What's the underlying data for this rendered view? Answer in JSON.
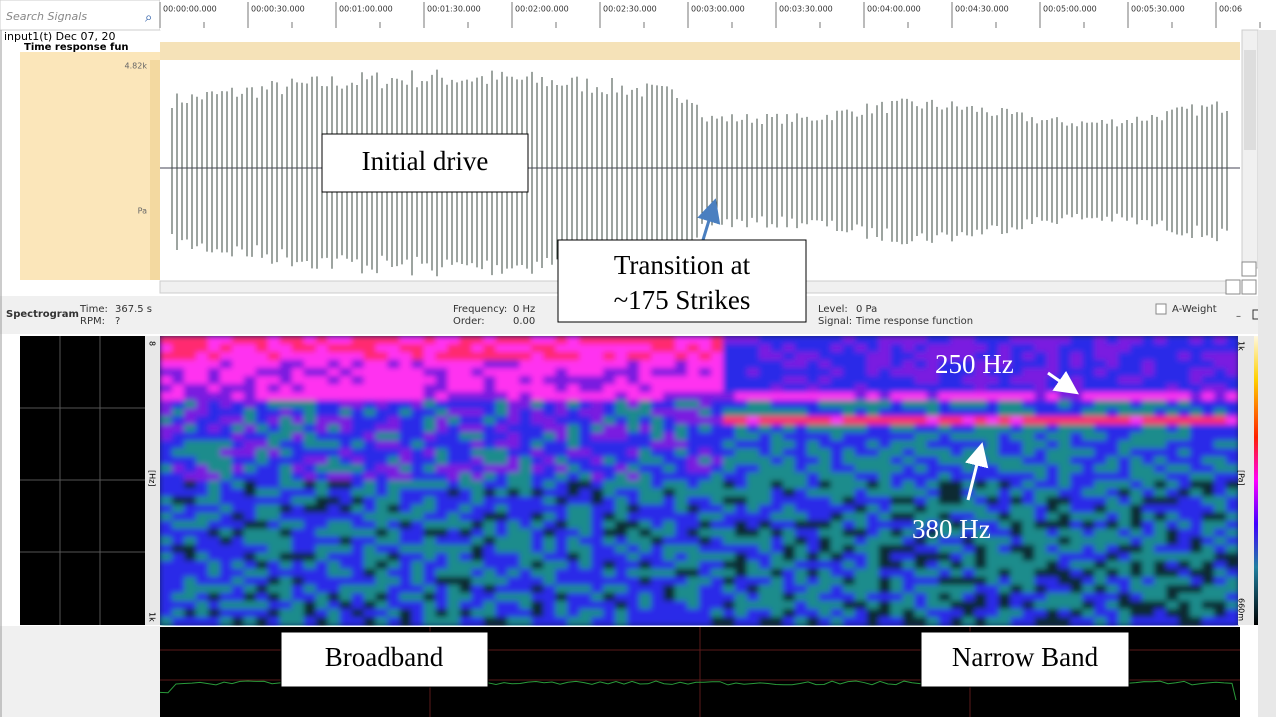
{
  "toolbar": {
    "search_placeholder": "Search Signals"
  },
  "timeline": {
    "labels": [
      "00:00:00.000",
      "00:00:30.000",
      "00:01:00.000",
      "00:01:30.000",
      "00:02:00.000",
      "00:02:30.000",
      "00:03:00.000",
      "00:03:30.000",
      "00:04:00.000",
      "00:04:30.000",
      "00:05:00.000",
      "00:05:30.000",
      "00:06"
    ]
  },
  "tree": {
    "items": [
      "input1(t) Dec 07, 20",
      "Time response fun"
    ]
  },
  "waveform": {
    "max_label": "4.82k",
    "unit": "Pa"
  },
  "spectrogram_header": {
    "title": "Spectrogram",
    "time_label": "Time:",
    "time_value": "367.5 s",
    "rpm_label": "RPM:",
    "rpm_value": "?",
    "frequency_label": "Frequency:",
    "frequency_value": "0 Hz",
    "order_label": "Order:",
    "order_value": "0.00",
    "level_label": "Level:",
    "level_value": "0 Pa",
    "signal_label": "Signal:",
    "signal_value": "Time response function",
    "a_weight": "A-Weight"
  },
  "spectrogram": {
    "y_top_label": "8",
    "y_bottom_label": "1k",
    "y_unit": "[Hz]",
    "color_top_label": "1k",
    "color_bottom_label": "660m",
    "color_unit": "[Pa]"
  },
  "annotations": {
    "initial_drive": "Initial drive",
    "transition": [
      "Transition at",
      "~175 Strikes"
    ],
    "hz250": "250 Hz",
    "hz380": "380 Hz",
    "broadband": "Broadband",
    "narrow_band": "Narrow Band"
  }
}
